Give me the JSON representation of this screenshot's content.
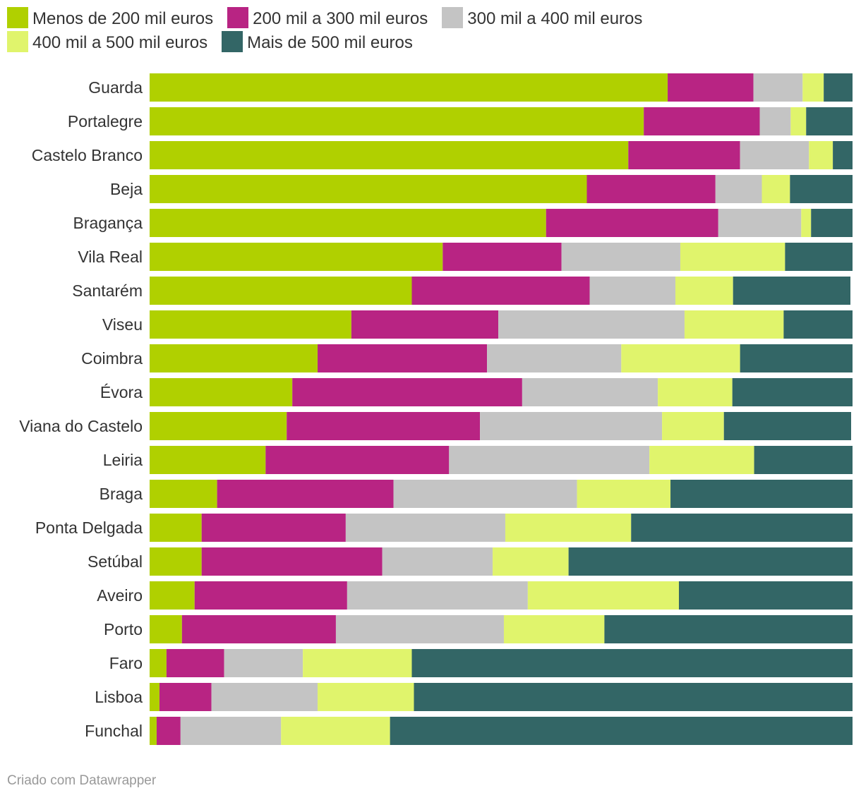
{
  "chart_data": {
    "type": "bar",
    "orientation": "horizontal",
    "stacked": true,
    "normalized_percent": true,
    "xlim": [
      0,
      100
    ],
    "categories": [
      "Guarda",
      "Portalegre",
      "Castelo Branco",
      "Beja",
      "Bragança",
      "Vila Real",
      "Santarém",
      "Viseu",
      "Coimbra",
      "Évora",
      "Viana do Castelo",
      "Leiria",
      "Braga",
      "Ponta Delgada",
      "Setúbal",
      "Aveiro",
      "Porto",
      "Faro",
      "Lisboa",
      "Funchal"
    ],
    "series": [
      {
        "name": "Menos de 200 mil euros",
        "color": "#b0d000",
        "values": [
          73.7,
          70.3,
          68.1,
          62.2,
          56.4,
          41.7,
          37.3,
          28.7,
          23.9,
          20.3,
          19.5,
          16.5,
          9.6,
          7.4,
          7.4,
          6.4,
          4.6,
          2.4,
          1.4,
          1.0
        ]
      },
      {
        "name": "200 mil a 300 mil euros",
        "color": "#b82483",
        "values": [
          12.2,
          16.5,
          15.9,
          18.3,
          24.5,
          16.9,
          25.3,
          20.9,
          24.1,
          32.7,
          27.5,
          26.1,
          25.1,
          20.5,
          25.7,
          21.7,
          21.9,
          8.2,
          7.4,
          3.4
        ]
      },
      {
        "name": "300 mil a 400 mil euros",
        "color": "#c4c4c4",
        "values": [
          7.0,
          4.4,
          9.8,
          6.6,
          11.8,
          16.9,
          12.2,
          26.5,
          19.1,
          19.3,
          25.9,
          28.5,
          26.1,
          22.7,
          15.7,
          25.7,
          23.9,
          11.2,
          15.1,
          14.3
        ]
      },
      {
        "name": "400 mil a 500 mil euros",
        "color": "#e0f46c",
        "values": [
          3.0,
          2.2,
          3.4,
          4.0,
          1.4,
          14.9,
          8.2,
          14.1,
          16.9,
          10.6,
          8.8,
          14.9,
          13.3,
          17.9,
          10.8,
          21.5,
          14.3,
          15.5,
          13.7,
          15.5
        ]
      },
      {
        "name": "Mais de 500 mil euros",
        "color": "#336666",
        "values": [
          4.1,
          6.6,
          2.8,
          8.9,
          5.9,
          9.6,
          16.7,
          9.8,
          16.0,
          17.1,
          18.1,
          14.0,
          25.9,
          31.5,
          40.4,
          24.7,
          35.3,
          62.7,
          62.4,
          65.8
        ]
      }
    ]
  },
  "footer": "Criado com Datawrapper"
}
